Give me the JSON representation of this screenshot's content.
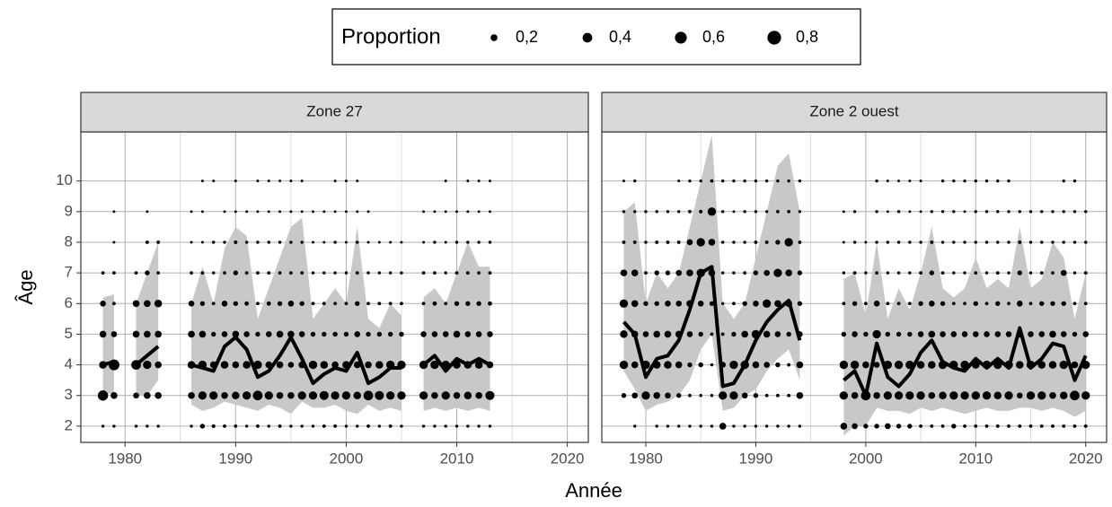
{
  "legend": {
    "title": "Proportion",
    "items": [
      {
        "value": 0.2,
        "label": "0,2"
      },
      {
        "value": 0.4,
        "label": "0,4"
      },
      {
        "value": 0.6,
        "label": "0,6"
      },
      {
        "value": 0.8,
        "label": "0,8"
      }
    ]
  },
  "xlabel": "Année",
  "ylabel": "Âge",
  "chart_data": [
    {
      "type": "bubble",
      "title": "Zone 27",
      "xlim": [
        1976,
        2021.9
      ],
      "ylim": [
        1.47,
        11.6
      ],
      "xticks": [
        1980,
        1990,
        2000,
        2010,
        2020
      ],
      "xminor": [
        1985,
        1995,
        2005,
        2015
      ],
      "yticks": [
        2,
        3,
        4,
        5,
        6,
        7,
        8,
        9,
        10
      ],
      "ribbon_color": "#c8c8c8",
      "color": "#000000",
      "x": [
        1978,
        1979,
        1980,
        1981,
        1982,
        1983,
        1984,
        1985,
        1986,
        1987,
        1988,
        1989,
        1990,
        1991,
        1992,
        1993,
        1994,
        1995,
        1996,
        1997,
        1998,
        1999,
        2000,
        2001,
        2002,
        2003,
        2004,
        2005,
        2006,
        2007,
        2008,
        2009,
        2010,
        2011,
        2012,
        2013
      ],
      "mean": [
        4.0,
        4.1,
        null,
        4.0,
        4.3,
        4.6,
        null,
        null,
        4.0,
        3.9,
        3.8,
        4.6,
        4.9,
        4.5,
        3.6,
        3.8,
        4.3,
        4.9,
        4.2,
        3.4,
        3.7,
        3.9,
        3.8,
        4.4,
        3.4,
        3.6,
        3.9,
        3.9,
        null,
        4.0,
        4.3,
        3.8,
        4.2,
        4.0,
        4.2,
        4.0
      ],
      "upper": [
        6.2,
        6.3,
        null,
        6.0,
        7.0,
        8.0,
        null,
        null,
        6.0,
        7.2,
        6.0,
        7.8,
        8.5,
        8.2,
        5.5,
        6.5,
        7.5,
        8.5,
        8.8,
        5.5,
        6.0,
        6.5,
        6.0,
        8.5,
        5.5,
        5.2,
        6.0,
        5.6,
        null,
        6.2,
        6.5,
        6.0,
        7.0,
        8.0,
        7.2,
        7.2
      ],
      "lower": [
        3.0,
        3.1,
        null,
        3.0,
        3.0,
        3.5,
        null,
        null,
        2.7,
        2.5,
        2.6,
        2.8,
        2.7,
        2.6,
        2.5,
        2.7,
        2.6,
        2.4,
        2.8,
        2.6,
        2.6,
        2.7,
        2.5,
        2.4,
        2.7,
        2.5,
        2.6,
        2.5,
        null,
        2.5,
        2.6,
        2.5,
        2.6,
        2.5,
        2.6,
        2.5
      ],
      "proportions": [
        [
          0.04,
          0.45,
          0.25,
          0.2,
          0.15,
          0.05,
          null,
          null,
          null
        ],
        [
          0.04,
          0.2,
          0.5,
          0.15,
          0.05,
          0.05,
          0.03,
          0.03,
          null
        ],
        null,
        [
          0.04,
          0.15,
          0.4,
          0.2,
          0.2,
          0.05,
          null,
          null,
          null
        ],
        [
          0.04,
          0.2,
          0.3,
          0.2,
          0.2,
          0.1,
          0.05,
          0.03,
          null
        ],
        [
          0.04,
          0.2,
          0.2,
          0.2,
          0.25,
          0.05,
          0.05,
          null,
          null
        ],
        null,
        null,
        [
          0.04,
          0.2,
          0.25,
          0.2,
          0.15,
          0.05,
          0.03,
          0.03,
          null
        ],
        [
          0.1,
          0.3,
          0.3,
          0.2,
          0.1,
          0.05,
          0.03,
          0.03,
          0.03
        ],
        [
          0.06,
          0.3,
          0.2,
          0.1,
          0.05,
          0.04,
          0.04,
          null,
          0.03
        ],
        [
          0.05,
          0.2,
          0.25,
          0.15,
          0.15,
          0.05,
          0.04,
          0.03,
          null
        ],
        [
          0.05,
          0.25,
          0.2,
          0.2,
          0.1,
          0.1,
          0.06,
          0.03,
          0.03
        ],
        [
          0.04,
          0.3,
          0.25,
          0.15,
          0.08,
          0.05,
          0.04,
          0.03,
          null
        ],
        [
          0.05,
          0.4,
          0.3,
          0.1,
          0.05,
          0.05,
          0.04,
          0.03,
          0.03
        ],
        [
          0.04,
          0.3,
          0.2,
          0.15,
          0.08,
          0.05,
          0.04,
          0.03,
          0.03
        ],
        [
          0.05,
          0.2,
          0.2,
          0.2,
          0.1,
          0.05,
          0.04,
          0.03,
          0.03
        ],
        [
          0.04,
          0.2,
          0.15,
          0.2,
          0.15,
          0.05,
          0.04,
          0.03,
          0.03
        ],
        [
          0.04,
          0.3,
          0.2,
          0.15,
          0.1,
          0.05,
          0.04,
          0.03,
          0.03
        ],
        [
          0.04,
          0.3,
          0.3,
          0.1,
          0.05,
          0.04,
          0.03,
          0.03,
          null
        ],
        [
          0.05,
          0.35,
          0.25,
          0.1,
          0.05,
          0.04,
          0.03,
          0.03,
          null
        ],
        [
          0.05,
          0.3,
          0.2,
          0.1,
          0.05,
          0.04,
          0.04,
          0.03,
          0.03
        ],
        [
          0.04,
          0.3,
          0.25,
          0.1,
          0.05,
          0.04,
          0.03,
          0.03,
          0.03
        ],
        [
          0.04,
          0.25,
          0.2,
          0.15,
          0.1,
          0.05,
          0.04,
          0.03,
          0.03
        ],
        [
          0.05,
          0.4,
          0.2,
          0.1,
          0.05,
          0.04,
          0.03,
          0.03,
          null
        ],
        [
          0.04,
          0.35,
          0.25,
          0.1,
          0.05,
          0.04,
          0.03,
          null,
          null
        ],
        [
          0.05,
          0.3,
          0.3,
          0.1,
          0.05,
          0.04,
          0.03,
          null,
          null
        ],
        [
          0.04,
          0.3,
          0.3,
          0.1,
          0.05,
          0.04,
          0.03,
          null,
          null
        ],
        null,
        [
          0.04,
          0.3,
          0.3,
          0.15,
          0.05,
          0.05,
          0.03,
          0.03,
          null
        ],
        [
          0.04,
          0.2,
          0.3,
          0.15,
          0.08,
          0.05,
          0.04,
          0.03,
          null
        ],
        [
          0.04,
          0.3,
          0.3,
          0.15,
          0.05,
          0.04,
          0.03,
          0.03,
          0.03
        ],
        [
          0.04,
          0.2,
          0.25,
          0.2,
          0.1,
          0.05,
          0.04,
          0.03,
          null
        ],
        [
          0.04,
          0.25,
          0.25,
          0.15,
          0.1,
          0.05,
          0.04,
          0.03,
          0.03
        ],
        [
          0.04,
          0.2,
          0.25,
          0.15,
          0.1,
          0.05,
          0.04,
          0.03,
          0.03
        ],
        [
          0.04,
          0.35,
          0.2,
          0.15,
          0.08,
          0.05,
          0.04,
          0.03,
          0.03
        ]
      ]
    },
    {
      "type": "bubble",
      "title": "Zone 2 ouest",
      "xlim": [
        1976,
        2021.9
      ],
      "ylim": [
        1.47,
        11.6
      ],
      "xticks": [
        1980,
        1990,
        2000,
        2010,
        2020
      ],
      "xminor": [
        1985,
        1995,
        2005,
        2015
      ],
      "yticks": [
        2,
        3,
        4,
        5,
        6,
        7,
        8,
        9,
        10
      ],
      "ribbon_color": "#c8c8c8",
      "color": "#000000",
      "x": [
        1978,
        1979,
        1980,
        1981,
        1982,
        1983,
        1984,
        1985,
        1986,
        1987,
        1988,
        1989,
        1990,
        1991,
        1992,
        1993,
        1994,
        1995,
        1996,
        1997,
        1998,
        1999,
        2000,
        2001,
        2002,
        2003,
        2004,
        2005,
        2006,
        2007,
        2008,
        2009,
        2010,
        2011,
        2012,
        2013,
        2014,
        2015,
        2016,
        2017,
        2018,
        2019,
        2020
      ],
      "mean": [
        5.4,
        5.0,
        3.6,
        4.2,
        4.3,
        4.8,
        5.8,
        7.0,
        7.2,
        3.3,
        3.4,
        4.0,
        4.8,
        5.4,
        5.8,
        6.1,
        4.8,
        null,
        null,
        null,
        3.5,
        3.8,
        3.0,
        4.7,
        3.6,
        3.3,
        3.7,
        4.4,
        4.8,
        4.1,
        3.9,
        3.8,
        4.2,
        3.9,
        4.2,
        3.9,
        5.2,
        3.9,
        4.2,
        4.7,
        4.6,
        3.5,
        4.3
      ],
      "upper": [
        9.0,
        9.3,
        6.0,
        7.0,
        6.5,
        7.0,
        8.5,
        10.0,
        11.5,
        6.0,
        5.5,
        6.0,
        7.5,
        9.0,
        10.5,
        10.9,
        9.0,
        null,
        null,
        null,
        6.8,
        7.0,
        5.6,
        8.0,
        5.5,
        6.5,
        5.8,
        7.0,
        8.5,
        6.5,
        6.2,
        6.5,
        7.5,
        6.5,
        6.8,
        6.5,
        8.5,
        6.5,
        6.8,
        8.0,
        7.5,
        5.5,
        7.0
      ],
      "lower": [
        3.8,
        3.2,
        2.5,
        2.7,
        2.8,
        3.0,
        3.5,
        4.5,
        5.0,
        2.5,
        2.6,
        3.0,
        3.2,
        3.8,
        4.2,
        4.5,
        3.5,
        null,
        null,
        null,
        1.7,
        2.0,
        2.0,
        2.6,
        2.5,
        2.5,
        2.4,
        2.6,
        2.5,
        2.6,
        2.5,
        2.4,
        2.5,
        2.6,
        2.5,
        2.5,
        2.6,
        2.6,
        2.5,
        2.6,
        2.5,
        2.3,
        2.5
      ],
      "proportions": [
        [
          null,
          0.1,
          0.3,
          0.25,
          0.3,
          0.2,
          0.05,
          0.04,
          0.03
        ],
        [
          0.04,
          0.15,
          0.2,
          0.2,
          0.2,
          0.2,
          0.05,
          0.04,
          0.04
        ],
        [
          null,
          0.3,
          0.3,
          0.15,
          0.1,
          0.05,
          0.04,
          0.04,
          null
        ],
        [
          0.04,
          0.2,
          0.25,
          0.2,
          0.1,
          0.1,
          0.05,
          0.04,
          null
        ],
        [
          0.04,
          0.15,
          0.25,
          0.2,
          0.15,
          0.1,
          0.05,
          0.04,
          null
        ],
        [
          0.04,
          0.1,
          0.2,
          0.2,
          0.15,
          0.15,
          0.05,
          0.04,
          0.03
        ],
        [
          0.04,
          0.05,
          0.1,
          0.15,
          0.2,
          0.2,
          0.15,
          0.05,
          0.04
        ],
        [
          0.04,
          0.04,
          0.1,
          0.1,
          0.15,
          0.3,
          0.3,
          0.06,
          0.04
        ],
        [
          0.04,
          0.04,
          0.04,
          0.05,
          0.1,
          0.2,
          0.2,
          0.3,
          0.05
        ],
        [
          0.2,
          0.3,
          0.15,
          0.05,
          0.04,
          0.04,
          0.04,
          0.04,
          0.04
        ],
        [
          0.04,
          0.3,
          0.3,
          0.1,
          0.05,
          0.04,
          0.04,
          0.03,
          0.04
        ],
        [
          0.04,
          0.15,
          0.3,
          0.2,
          0.1,
          0.05,
          0.04,
          0.04,
          0.04
        ],
        [
          0.04,
          0.1,
          0.2,
          0.3,
          0.15,
          0.1,
          0.05,
          0.04,
          0.04
        ],
        [
          0.04,
          0.05,
          0.15,
          0.2,
          0.3,
          0.15,
          0.05,
          0.04,
          0.04
        ],
        [
          0.04,
          0.05,
          0.1,
          0.15,
          0.2,
          0.3,
          0.1,
          0.05,
          0.04
        ],
        [
          0.04,
          0.05,
          0.05,
          0.1,
          0.2,
          0.2,
          0.3,
          0.05,
          0.04
        ],
        [
          0.04,
          0.2,
          0.2,
          0.15,
          0.1,
          0.1,
          0.05,
          0.04,
          0.04
        ],
        null,
        null,
        null,
        [
          0.2,
          0.3,
          0.3,
          0.1,
          0.05,
          0.04,
          0.03,
          0.03,
          null
        ],
        [
          0.15,
          0.2,
          0.3,
          0.15,
          0.1,
          0.05,
          0.04,
          0.04,
          null
        ],
        [
          0.1,
          0.4,
          0.2,
          0.1,
          0.05,
          0.04,
          0.03,
          null,
          null
        ],
        [
          0.1,
          0.2,
          0.15,
          0.3,
          0.15,
          0.05,
          0.04,
          0.04,
          0.04
        ],
        [
          0.15,
          0.3,
          0.3,
          0.1,
          0.05,
          0.04,
          0.04,
          0.03,
          0.03
        ],
        [
          0.1,
          0.3,
          0.3,
          0.1,
          0.05,
          0.04,
          0.04,
          0.04,
          0.03
        ],
        [
          0.1,
          0.3,
          0.3,
          0.1,
          0.05,
          0.04,
          0.04,
          0.03,
          0.03
        ],
        [
          0.05,
          0.3,
          0.25,
          0.15,
          0.1,
          0.05,
          0.04,
          0.03,
          0.03
        ],
        [
          0.05,
          0.2,
          0.25,
          0.2,
          0.15,
          0.1,
          0.05,
          0.04,
          null
        ],
        [
          0.05,
          0.25,
          0.3,
          0.15,
          0.1,
          0.05,
          0.04,
          0.04,
          0.04
        ],
        [
          0.1,
          0.3,
          0.3,
          0.15,
          0.05,
          0.04,
          0.04,
          0.04,
          0.04
        ],
        [
          0.05,
          0.3,
          0.3,
          0.15,
          0.05,
          0.04,
          0.04,
          0.03,
          0.04
        ],
        [
          0.05,
          0.3,
          0.25,
          0.15,
          0.1,
          0.05,
          0.04,
          0.04,
          0.04
        ],
        [
          0.05,
          0.3,
          0.3,
          0.15,
          0.05,
          0.04,
          0.04,
          0.04,
          0.04
        ],
        [
          0.05,
          0.25,
          0.3,
          0.15,
          0.1,
          0.05,
          0.04,
          0.04,
          0.04
        ],
        [
          0.05,
          0.3,
          0.3,
          0.15,
          0.05,
          0.04,
          0.04,
          0.04,
          0.04
        ],
        [
          0.05,
          0.15,
          0.25,
          0.2,
          0.15,
          0.1,
          0.05,
          0.04,
          null
        ],
        [
          0.05,
          0.3,
          0.3,
          0.15,
          0.05,
          0.04,
          0.04,
          0.04,
          null
        ],
        [
          0.05,
          0.3,
          0.25,
          0.15,
          0.1,
          0.05,
          0.04,
          0.04,
          null
        ],
        [
          0.05,
          0.2,
          0.25,
          0.2,
          0.1,
          0.05,
          0.04,
          0.04,
          null
        ],
        [
          0.05,
          0.25,
          0.3,
          0.15,
          0.1,
          0.15,
          0.04,
          0.04,
          0.04
        ],
        [
          0.05,
          0.4,
          0.2,
          0.1,
          0.05,
          0.04,
          0.04,
          0.04,
          0.04
        ],
        [
          0.05,
          0.3,
          0.3,
          0.15,
          0.05,
          0.05,
          0.04,
          0.04,
          null
        ]
      ]
    }
  ]
}
